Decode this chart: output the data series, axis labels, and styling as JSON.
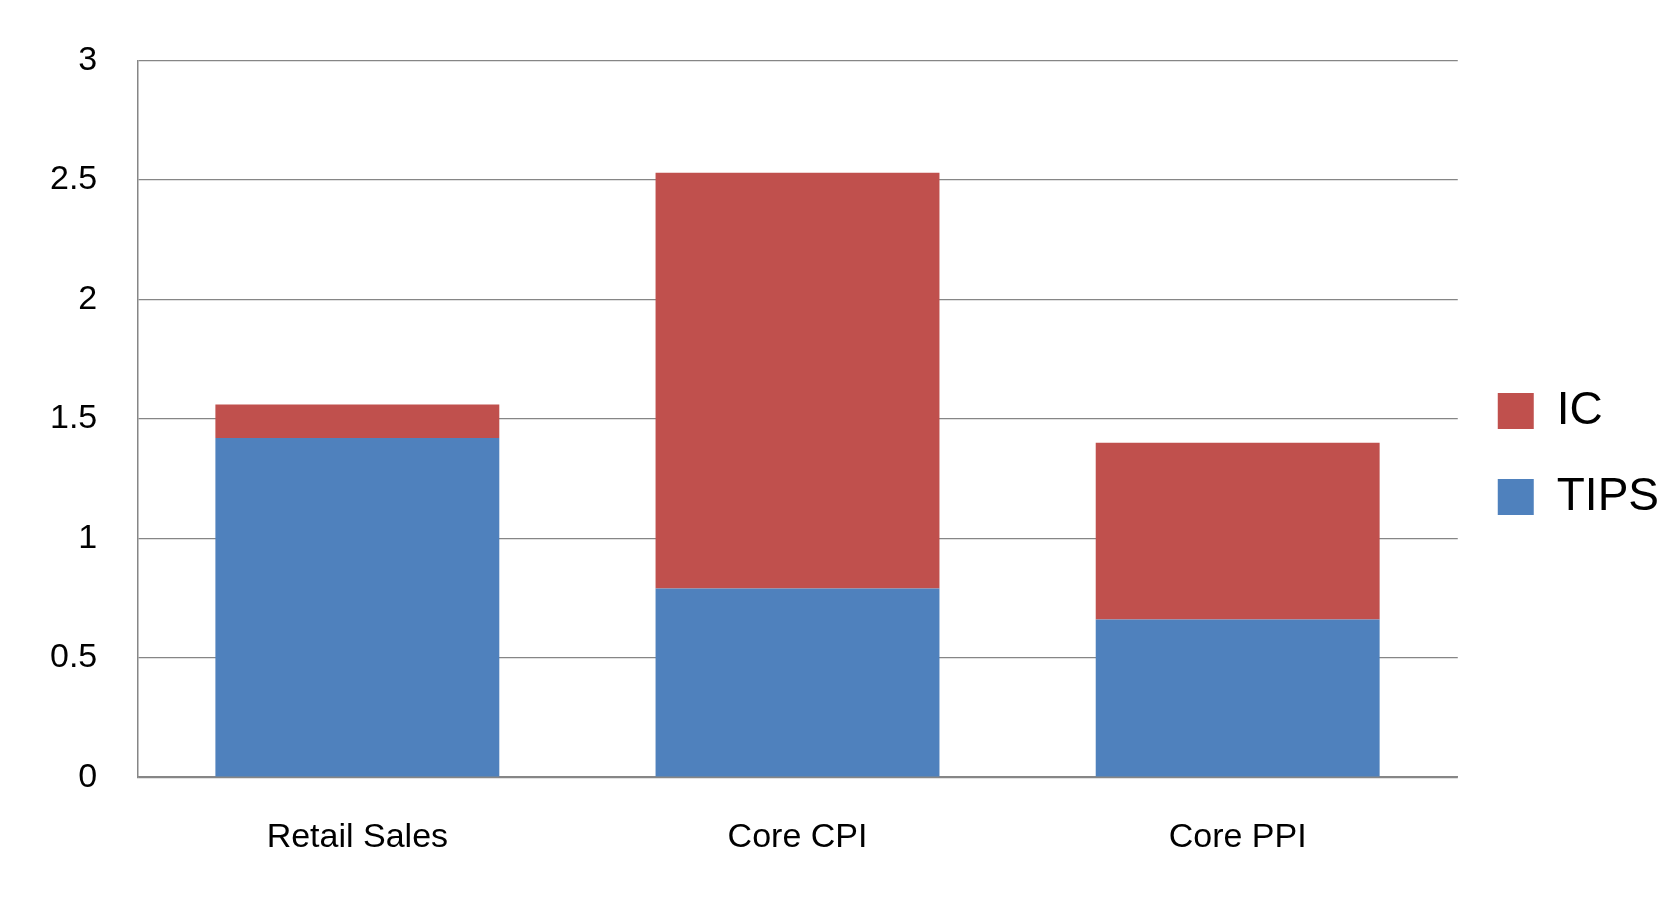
{
  "chart_data": {
    "type": "bar",
    "stacked": true,
    "categories": [
      "Retail Sales",
      "Core CPI",
      "Core PPI"
    ],
    "series": [
      {
        "name": "TIPS",
        "color": "#4f81bd",
        "values": [
          1.42,
          0.79,
          0.66
        ]
      },
      {
        "name": "IC",
        "color": "#c0504d",
        "values": [
          0.14,
          1.74,
          0.74
        ]
      }
    ],
    "ylim": [
      0,
      3
    ],
    "yticks": [
      0,
      0.5,
      1,
      1.5,
      2,
      2.5,
      3
    ],
    "grid": "y",
    "legend": "right"
  }
}
